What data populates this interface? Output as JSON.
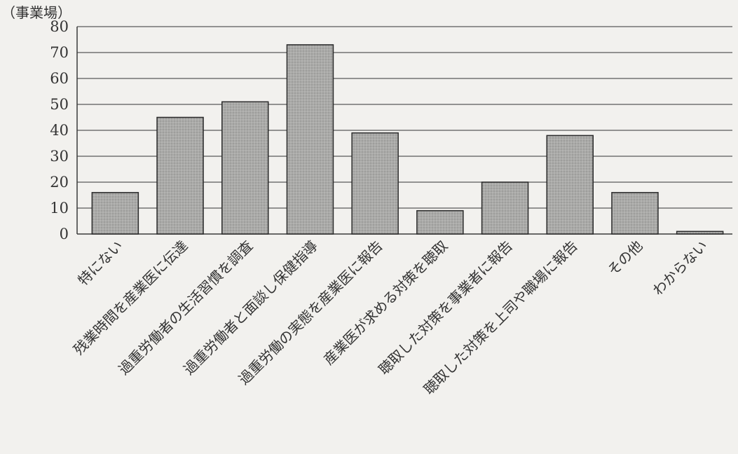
{
  "chart_data": {
    "type": "bar",
    "unit_label": "（事業場）",
    "categories": [
      "特にない",
      "残業時間を産業医に伝達",
      "過重労働者の生活習慣を調査",
      "過重労働者と面談し保健指導",
      "過重労働の実態を産業医に報告",
      "産業医が求める対策を聴取",
      "聴取した対策を事業者に報告",
      "聴取した対策を上司や職場に報告",
      "その他",
      "わからない"
    ],
    "values": [
      16,
      45,
      51,
      73,
      39,
      9,
      20,
      38,
      16,
      1
    ],
    "y_ticks": [
      0,
      10,
      20,
      30,
      40,
      50,
      60,
      70,
      80
    ],
    "ylim": [
      0,
      80
    ],
    "grid": true,
    "colors": {
      "bar_fill": "#a9a9a7",
      "background": "#f2f1ee"
    }
  }
}
